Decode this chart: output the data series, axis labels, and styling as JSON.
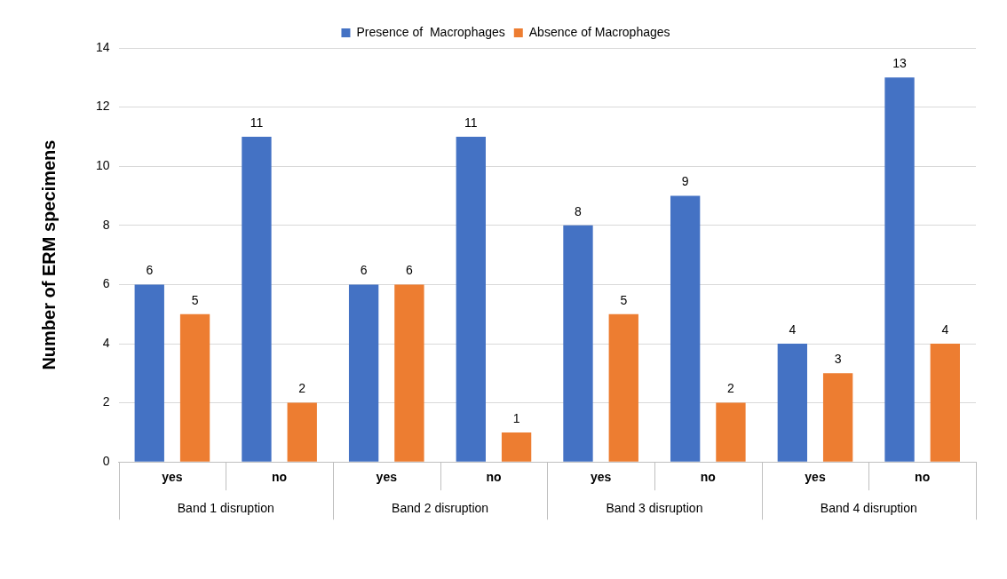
{
  "chart_data": {
    "type": "bar",
    "ylabel": "Number of ERM specimens",
    "categories": [
      "yes",
      "no",
      "yes",
      "no",
      "yes",
      "no",
      "yes",
      "no"
    ],
    "series": [
      {
        "name": "Presence of  Macrophages",
        "color": "#4472c4",
        "values": [
          6,
          11,
          6,
          11,
          8,
          9,
          4,
          13
        ]
      },
      {
        "name": "Absence of Macrophages",
        "color": "#ed7d31",
        "values": [
          5,
          2,
          6,
          1,
          5,
          2,
          3,
          4
        ]
      }
    ],
    "annotations": [
      "Band 1 disruption",
      "Band 2 disruption",
      "Band 3 disruption",
      "Band 4 disruption"
    ],
    "ylim": [
      0,
      14
    ],
    "yticks": [
      0,
      2,
      4,
      6,
      8,
      10,
      12,
      14
    ],
    "grid": "y",
    "legend": "top",
    "data_labels": true
  }
}
